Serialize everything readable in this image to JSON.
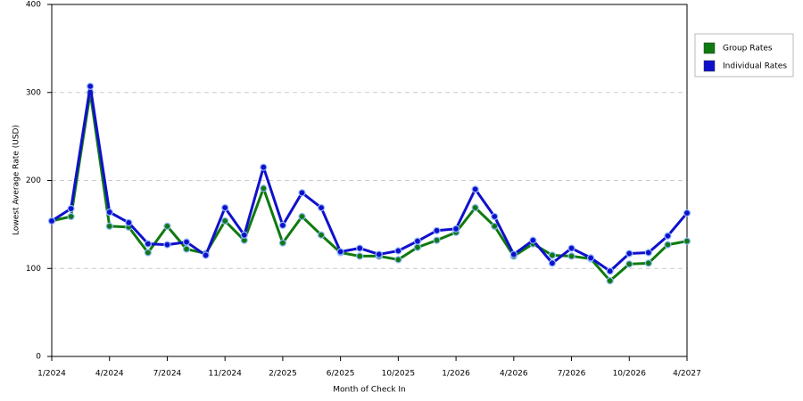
{
  "chart_data": {
    "type": "line",
    "x_label": "Month of Check In",
    "y_label": "Lowest Average Rate (USD)",
    "categories": [
      "1/2024",
      null,
      null,
      "4/2024",
      null,
      null,
      "7/2024",
      null,
      null,
      "11/2024",
      null,
      null,
      "2/2025",
      null,
      null,
      "6/2025",
      null,
      null,
      "10/2025",
      null,
      null,
      "1/2026",
      null,
      null,
      "4/2026",
      null,
      null,
      "7/2026",
      null,
      null,
      "10/2026",
      null,
      null,
      "4/2027"
    ],
    "series": [
      {
        "name": "Group Rates",
        "color": "#0f7a0f",
        "values": [
          154,
          159,
          300,
          148,
          147,
          118,
          148,
          122,
          117,
          154,
          132,
          191,
          129,
          159,
          138,
          118,
          114,
          114,
          110,
          124,
          132,
          141,
          169,
          148,
          114,
          128,
          115,
          114,
          111,
          86,
          105,
          106,
          127,
          131
        ]
      },
      {
        "name": "Individual Rates",
        "color": "#1010cc",
        "values": [
          154,
          168,
          307,
          164,
          152,
          128,
          127,
          130,
          115,
          169,
          138,
          215,
          149,
          186,
          169,
          119,
          123,
          116,
          120,
          131,
          143,
          145,
          190,
          159,
          116,
          132,
          106,
          123,
          112,
          97,
          117,
          118,
          137,
          163
        ]
      }
    ],
    "ylim": [
      0,
      400
    ],
    "yticks": [
      0,
      100,
      200,
      300,
      400
    ],
    "grid": true,
    "legend": "right"
  }
}
